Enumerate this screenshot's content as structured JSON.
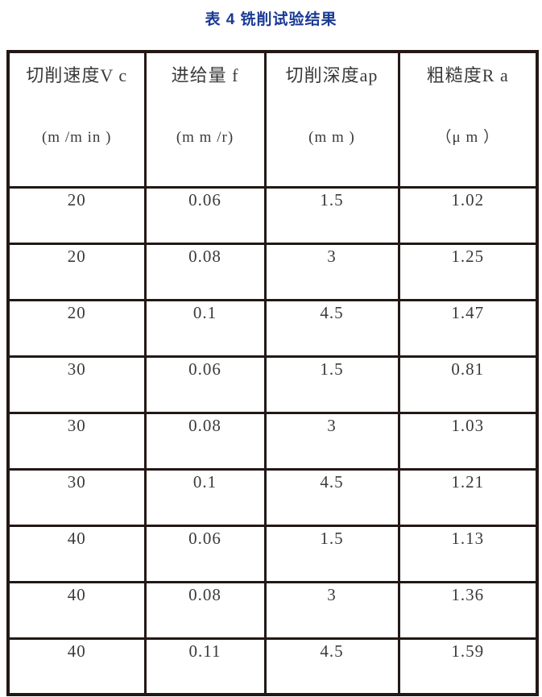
{
  "title": {
    "text": "表 4 铣削试验结果",
    "color": "#1a3a94"
  },
  "table": {
    "border_color": "#231815",
    "text_color": "#3a3a3a",
    "columns": [
      {
        "label": "切削速度V c",
        "unit": "(m /m in )"
      },
      {
        "label": "进给量 f",
        "unit": "(m m /r)"
      },
      {
        "label": "切削深度ap",
        "unit": "(m m )"
      },
      {
        "label": "粗糙度R a",
        "unit": "（μ m ）"
      }
    ],
    "rows": [
      [
        "20",
        "0.06",
        "1.5",
        "1.02"
      ],
      [
        "20",
        "0.08",
        "3",
        "1.25"
      ],
      [
        "20",
        "0.1",
        "4.5",
        "1.47"
      ],
      [
        "30",
        "0.06",
        "1.5",
        "0.81"
      ],
      [
        "30",
        "0.08",
        "3",
        "1.03"
      ],
      [
        "30",
        "0.1",
        "4.5",
        "1.21"
      ],
      [
        "40",
        "0.06",
        "1.5",
        "1.13"
      ],
      [
        "40",
        "0.08",
        "3",
        "1.36"
      ],
      [
        "40",
        "0.11",
        "4.5",
        "1.59"
      ]
    ]
  }
}
